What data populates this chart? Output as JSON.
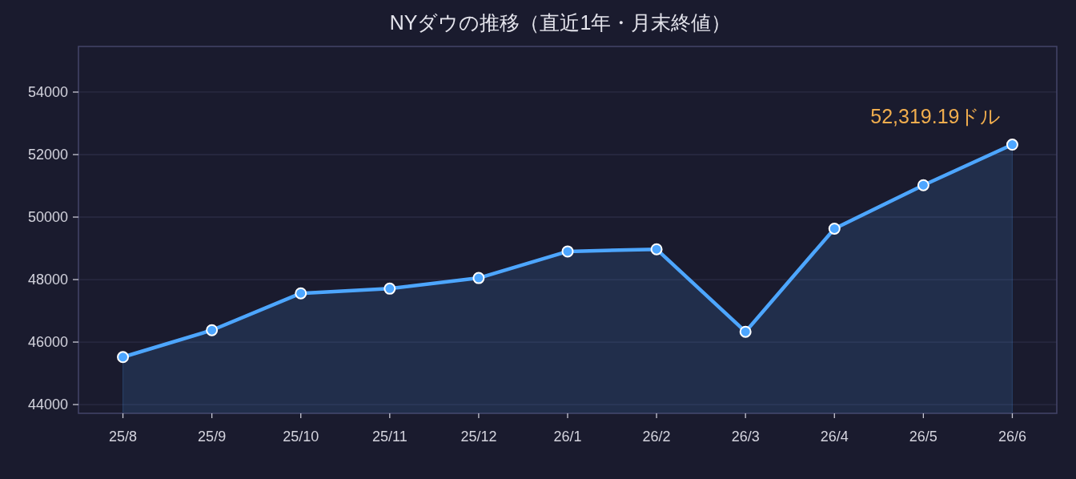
{
  "chart_data": {
    "type": "area",
    "title": "NYダウの推移（直近1年・月末終値）",
    "categories": [
      "25/8",
      "25/9",
      "25/10",
      "25/11",
      "25/12",
      "26/1",
      "26/2",
      "26/3",
      "26/4",
      "26/5",
      "26/6"
    ],
    "series": [
      {
        "color": "#4da6ff",
        "values": [
          45520,
          46380,
          47560,
          47710,
          48050,
          48900,
          48970,
          46330,
          49630,
          51020,
          52319.19
        ]
      }
    ],
    "ylim": [
      43720,
      55460
    ],
    "yticks": [
      44000,
      46000,
      48000,
      50000,
      52000,
      54000
    ],
    "grid": "y",
    "marker": "circle",
    "line_style": "solid",
    "annotations": [
      {
        "text": "52,319.19ドル",
        "x": "26/6",
        "y": 52319.19
      }
    ]
  }
}
